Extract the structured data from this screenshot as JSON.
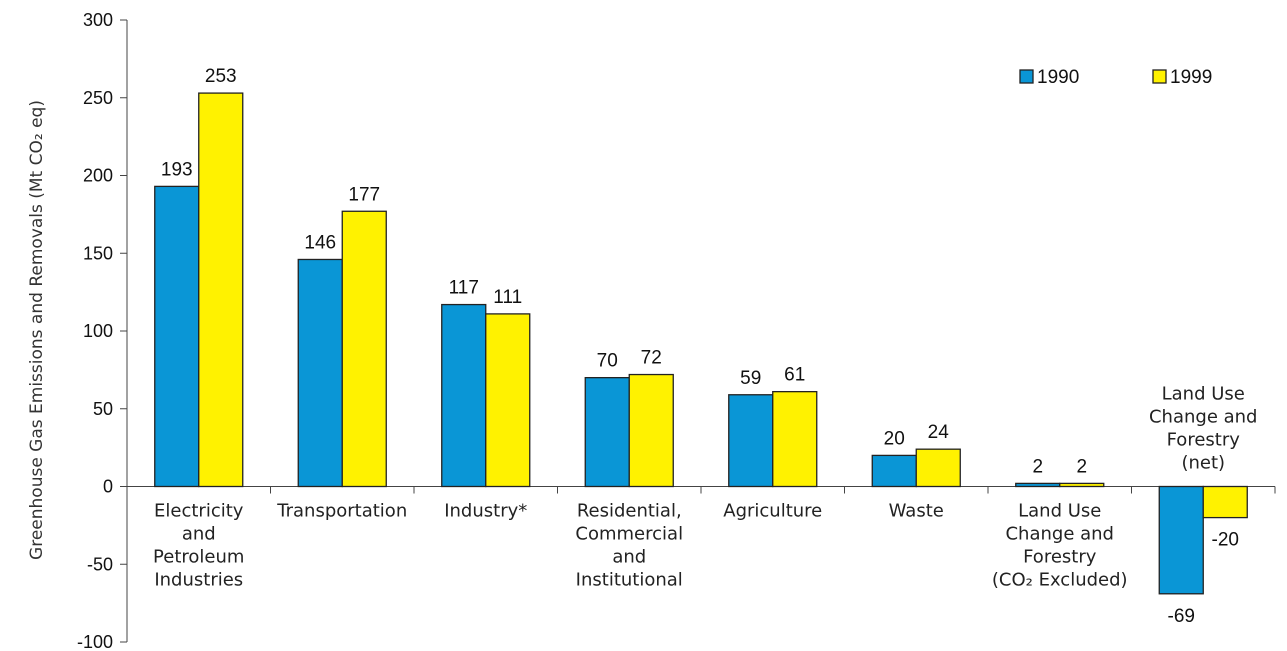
{
  "chart_data": {
    "type": "bar",
    "ylabel": "Greenhouse Gas Emissions and Removals (Mt CO₂ eq)",
    "ylim": [
      -100,
      300
    ],
    "yticks": [
      300,
      250,
      200,
      150,
      100,
      50,
      0,
      -50,
      -100
    ],
    "legend_position": "top-right",
    "colors": {
      "1990": "#0a96d6",
      "1999": "#fff200",
      "outline": "#222222"
    },
    "categories": [
      {
        "lines": [
          "Electricity",
          "and",
          "Petroleum",
          "Industries"
        ],
        "label_position": "below-axis"
      },
      {
        "lines": [
          "Transportation"
        ],
        "label_position": "below-axis"
      },
      {
        "lines": [
          "Industry*"
        ],
        "label_position": "below-axis"
      },
      {
        "lines": [
          "Residential,",
          "Commercial",
          "and",
          "Institutional"
        ],
        "label_position": "below-axis"
      },
      {
        "lines": [
          "Agriculture"
        ],
        "label_position": "below-axis"
      },
      {
        "lines": [
          "Waste"
        ],
        "label_position": "below-axis"
      },
      {
        "lines": [
          "Land Use",
          "Change and",
          "Forestry",
          "(CO₂ Excluded)"
        ],
        "label_position": "below-axis"
      },
      {
        "lines": [
          "Land Use",
          "Change and",
          "Forestry",
          "(net)"
        ],
        "label_position": "above-axis"
      }
    ],
    "series": [
      {
        "name": "1990",
        "values": [
          193,
          146,
          117,
          70,
          59,
          20,
          2,
          -69
        ]
      },
      {
        "name": "1999",
        "values": [
          253,
          177,
          111,
          72,
          61,
          24,
          2,
          -20
        ]
      }
    ]
  }
}
